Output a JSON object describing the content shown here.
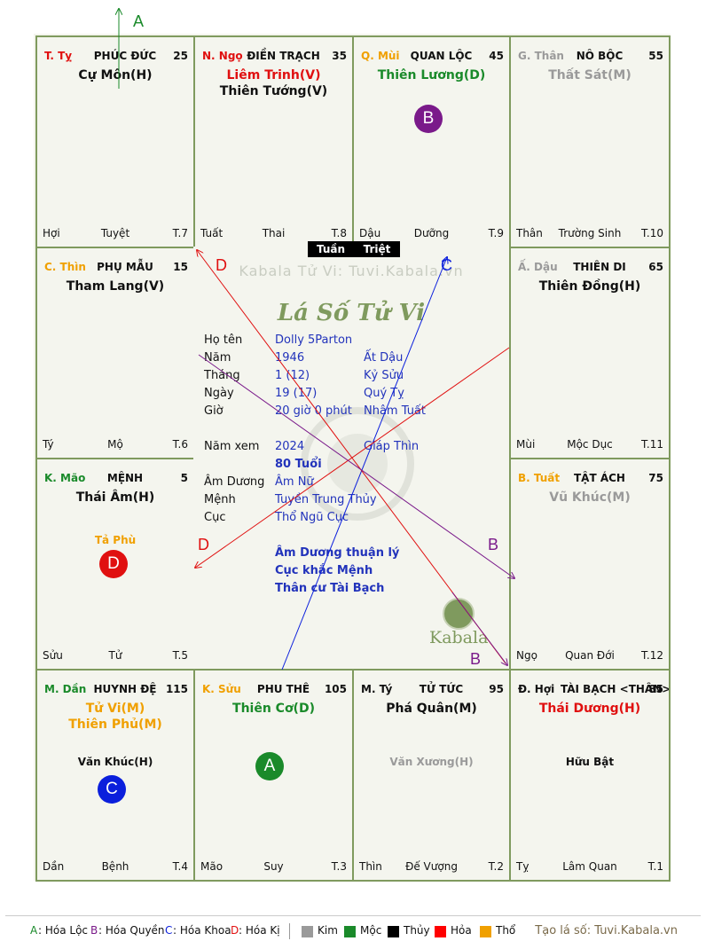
{
  "arrow_labels": {
    "top": "A",
    "d_upper": "D",
    "c_upper": "C",
    "d_left": "D",
    "b_right": "B",
    "b_lower": "B"
  },
  "palaces": [
    {
      "id": "ty-top",
      "branch": "T. Tỵ",
      "branch_color": "#e01010",
      "name": "PHÚC ĐỨC",
      "num": "25",
      "stars": [
        {
          "t": "Cự Môn(H)",
          "c": "#111"
        }
      ],
      "sub": "",
      "foot": [
        "Hợi",
        "Tuyệt",
        "T.7"
      ]
    },
    {
      "id": "ngo",
      "branch": "N. Ngọ",
      "branch_color": "#e01010",
      "name": "ĐIỀN TRẠCH",
      "num": "35",
      "stars": [
        {
          "t": "Liêm Trinh(V)",
          "c": "#e01010"
        },
        {
          "t": "Thiên Tướng(V)",
          "c": "#111"
        }
      ],
      "sub": "",
      "foot": [
        "Tuất",
        "Thai",
        "T.8"
      ]
    },
    {
      "id": "mui",
      "branch": "Q. Mùi",
      "branch_color": "#f0a000",
      "name": "QUAN LỘC",
      "num": "45",
      "stars": [
        {
          "t": "Thiên Lương(D)",
          "c": "#1a8a2a"
        }
      ],
      "sub": "",
      "foot": [
        "Dậu",
        "Dưỡng",
        "T.9"
      ]
    },
    {
      "id": "than",
      "branch": "G. Thân",
      "branch_color": "#9a9a9a",
      "name": "NÔ BỘC",
      "num": "55",
      "stars": [
        {
          "t": "Thất Sát(M)",
          "c": "#9a9a9a"
        }
      ],
      "sub": "",
      "foot": [
        "Thân",
        "Trường Sinh",
        "T.10"
      ]
    },
    {
      "id": "thin",
      "branch": "C. Thìn",
      "branch_color": "#f0a000",
      "name": "PHỤ MẪU",
      "num": "15",
      "stars": [
        {
          "t": "Tham Lang(V)",
          "c": "#111"
        }
      ],
      "sub": "",
      "foot": [
        "Tý",
        "Mộ",
        "T.6"
      ]
    },
    {
      "id": "dau",
      "branch": "Ấ. Dậu",
      "branch_color": "#9a9a9a",
      "name": "THIÊN DI",
      "num": "65",
      "stars": [
        {
          "t": "Thiên Đồng(H)",
          "c": "#111"
        }
      ],
      "sub": "",
      "foot": [
        "Mùi",
        "Mộc Dục",
        "T.11"
      ]
    },
    {
      "id": "mao",
      "branch": "K. Mão",
      "branch_color": "#1a8a2a",
      "name": "MỆNH",
      "num": "5",
      "stars": [
        {
          "t": "Thái Âm(H)",
          "c": "#111"
        }
      ],
      "sub": "Tả Phù",
      "sub_color": "#f0a000",
      "foot": [
        "Sửu",
        "Tử",
        "T.5"
      ]
    },
    {
      "id": "tuat",
      "branch": "B. Tuất",
      "branch_color": "#f0a000",
      "name": "TẬT ÁCH",
      "num": "75",
      "stars": [
        {
          "t": "Vũ Khúc(M)",
          "c": "#9a9a9a"
        }
      ],
      "sub": "",
      "foot": [
        "Ngọ",
        "Quan Đới",
        "T.12"
      ]
    },
    {
      "id": "dan",
      "branch": "M. Dần",
      "branch_color": "#1a8a2a",
      "name": "HUYNH ĐỆ",
      "num": "115",
      "stars": [
        {
          "t": "Tử Vi(M)",
          "c": "#f0a000"
        },
        {
          "t": "Thiên Phủ(M)",
          "c": "#f0a000"
        }
      ],
      "sub": "Văn Khúc(H)",
      "sub_color": "#111",
      "foot": [
        "Dần",
        "Bệnh",
        "T.4"
      ]
    },
    {
      "id": "suu",
      "branch": "K. Sửu",
      "branch_color": "#f0a000",
      "name": "PHU THÊ",
      "num": "105",
      "stars": [
        {
          "t": "Thiên Cơ(D)",
          "c": "#1a8a2a"
        }
      ],
      "sub": "",
      "foot": [
        "Mão",
        "Suy",
        "T.3"
      ]
    },
    {
      "id": "ty-bottom",
      "branch": "M. Tý",
      "branch_color": "#111",
      "name": "TỬ TỨC",
      "num": "95",
      "stars": [
        {
          "t": "Phá Quân(M)",
          "c": "#111"
        }
      ],
      "sub": "Văn Xương(H)",
      "sub_color": "#9a9a9a",
      "foot": [
        "Thìn",
        "Đế Vượng",
        "T.2"
      ]
    },
    {
      "id": "hoi",
      "branch": "Đ. Hợi",
      "branch_color": "#111",
      "name": "TÀI BẠCH <THÂN>",
      "num": "85",
      "stars": [
        {
          "t": "Thái Dương(H)",
          "c": "#e01010"
        }
      ],
      "sub": "Hữu Bật",
      "sub_color": "#111",
      "foot": [
        "Tỵ",
        "Lâm Quan",
        "T.1"
      ]
    }
  ],
  "badges": [
    {
      "letter": "B",
      "palace": "mui",
      "color": "#7a1a8a"
    },
    {
      "letter": "D",
      "palace": "mao",
      "color": "#e01010"
    },
    {
      "letter": "C",
      "palace": "dan",
      "color": "#0b1fdc"
    },
    {
      "letter": "A",
      "palace": "suu",
      "color": "#1a8a2a"
    }
  ],
  "tuan": "Tuần",
  "triet": "Triệt",
  "watermark": "Kabala Tử Vi: Tuvi.Kabala.vn",
  "center_title": "Lá Số Tử Vi",
  "logo_text": "Kabala",
  "info": {
    "rows": [
      {
        "label": "Họ tên",
        "v1": "Dolly 5Parton",
        "v2": ""
      },
      {
        "label": "Năm",
        "v1": "1946",
        "v2": "Ất Dậu"
      },
      {
        "label": "Tháng",
        "v1": "1  (12)",
        "v2": "Kỷ Sửu"
      },
      {
        "label": "Ngày",
        "v1": "19  (17)",
        "v2": "Quý Tỵ"
      },
      {
        "label": "Giờ",
        "v1": "20 giờ 0 phút",
        "v2": "Nhâm Tuất"
      }
    ],
    "nam_xem_label": "Năm xem",
    "nam_xem": "2024",
    "nam_xem_can": "Giáp Thìn",
    "tuoi": "80 Tuổi",
    "rows2": [
      {
        "label": "Âm Dương",
        "v1": "Âm Nữ"
      },
      {
        "label": "Mệnh",
        "v1": "Tuyền Trung Thủy"
      },
      {
        "label": "Cục",
        "v1": "Thổ Ngũ Cục"
      }
    ],
    "notes": [
      "Âm Dương thuận lý",
      "Cục khắc Mệnh",
      "Thân cư Tài Bạch"
    ]
  },
  "legend": {
    "hoa": [
      {
        "k": "A",
        "t": ": Hóa Lộc",
        "c": "#1a8a2a"
      },
      {
        "k": "B",
        "t": ": Hóa Quyền",
        "c": "#7a1a8a"
      },
      {
        "k": "C",
        "t": ": Hóa Khoa",
        "c": "#0b1fdc"
      },
      {
        "k": "D",
        "t": ": Hóa Kị",
        "c": "#e01010"
      }
    ],
    "elements": [
      {
        "t": "Kim",
        "c": "#9a9a9a"
      },
      {
        "t": "Mộc",
        "c": "#1a8a2a"
      },
      {
        "t": "Thủy",
        "c": "#000000"
      },
      {
        "t": "Hỏa",
        "c": "#ff0000"
      },
      {
        "t": "Thổ",
        "c": "#f0a000"
      }
    ],
    "credit": "Tạo lá số: Tuvi.Kabala.vn"
  }
}
